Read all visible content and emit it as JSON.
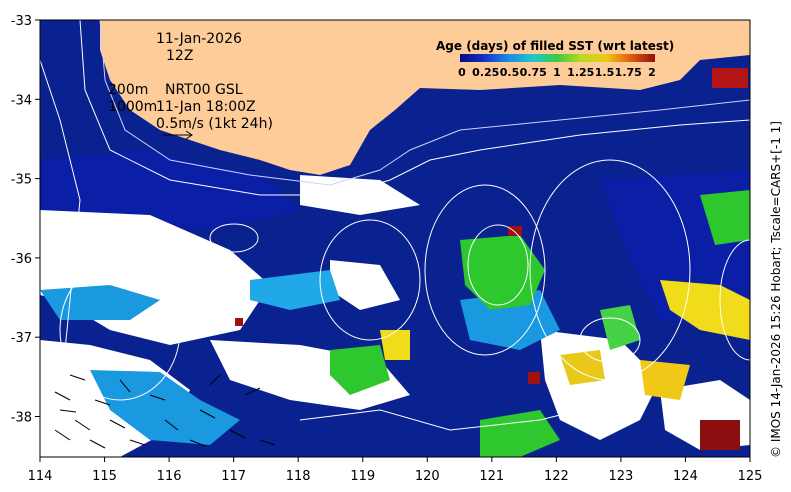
{
  "map": {
    "date": "11-Jan-2026",
    "hour": "12Z",
    "iso_200": "200m",
    "iso_1000": "1000m",
    "product": "NRT00 GSL",
    "valid": "11-Jan 18:00Z",
    "scale_note": "0.5m/s (1kt 24h)",
    "credit": "© IMOS 14-Jan-2026 15:26 Hobart; Tscale=CARS+[-1 1]",
    "x_ticks": [
      "114",
      "115",
      "116",
      "117",
      "118",
      "119",
      "120",
      "121",
      "122",
      "123",
      "124",
      "125"
    ],
    "y_ticks": [
      "-33",
      "-34",
      "-35",
      "-36",
      "-37",
      "-38"
    ],
    "colors": {
      "land": "#fdcc99",
      "nodata": "#ffffff",
      "age0": "#0a1a8a",
      "age_mid": "#1aa0e6",
      "age_green": "#2ec82e",
      "age_yellow": "#f0dc1a",
      "age_old": "#a01010"
    }
  },
  "colorbar": {
    "title": "Age (days) of filled SST (wrt latest)",
    "labels": [
      "0",
      "0.25",
      "0.5",
      "0.75",
      "1",
      "1.25",
      "1.5",
      "1.75",
      "2"
    ]
  }
}
